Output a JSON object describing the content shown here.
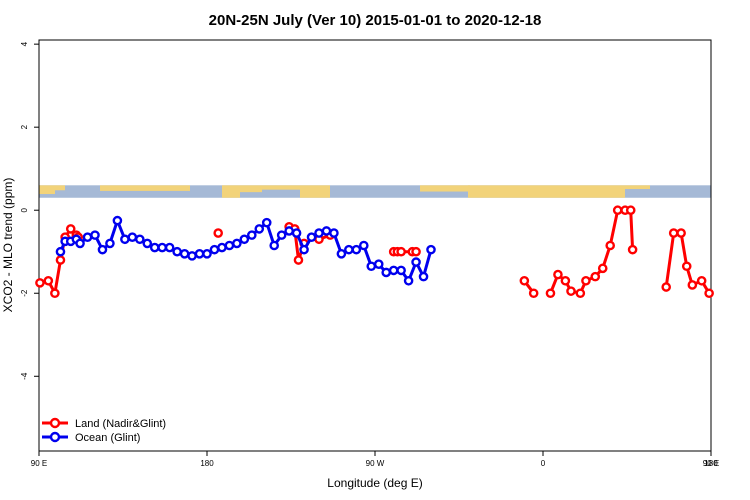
{
  "chart_data": {
    "type": "line",
    "title": "20N-25N July (Ver 10)   2015-01-01 to 2020-12-18",
    "xlabel": "Longitude (deg E)",
    "ylabel": "XCO2 - MLO trend (ppm)",
    "xlim": [
      90,
      450
    ],
    "ylim": [
      -5.8,
      4.1
    ],
    "x_ticks": [
      {
        "value": 90,
        "label": "90 E"
      },
      {
        "value": 180,
        "label": "180"
      },
      {
        "value": 270,
        "label": "90 W"
      },
      {
        "value": 360,
        "label": "0"
      },
      {
        "value": 450,
        "label": "90 E"
      },
      {
        "value": 540,
        "label": "180"
      }
    ],
    "y_ticks": [
      {
        "value": 4,
        "label": "4"
      },
      {
        "value": 2,
        "label": "2"
      },
      {
        "value": 0,
        "label": "0"
      },
      {
        "value": -2,
        "label": "-2"
      },
      {
        "value": -4,
        "label": "-4"
      }
    ],
    "map_strip": {
      "y_top": 0.6,
      "y_bottom": 0.3,
      "ocean_color": "#a5b9d6",
      "land_color": "#f2d37a"
    },
    "legend": {
      "position": "bottom-left"
    },
    "grid": false,
    "series": [
      {
        "name": "Land (Nadir&Glint)",
        "color": "#ff0000",
        "points": [
          [
            90.5,
            -1.75
          ],
          [
            95,
            -1.7
          ],
          [
            98.5,
            -2.0
          ],
          [
            101.5,
            -1.2
          ],
          [
            104,
            -0.65
          ],
          [
            107,
            -0.45
          ],
          [
            110,
            -0.6
          ],
          [
            111,
            -0.65
          ],
          [
            186,
            -0.55
          ],
          [
            224,
            -0.4
          ],
          [
            227,
            -0.45
          ],
          [
            229,
            -1.2
          ],
          [
            232,
            -0.8
          ],
          [
            240,
            -0.7
          ],
          [
            246,
            -0.6
          ],
          [
            280,
            -1.0
          ],
          [
            282,
            -1.0
          ],
          [
            284,
            -1.0
          ],
          [
            290,
            -1.0
          ],
          [
            292,
            -1.0
          ],
          [
            350,
            -1.7
          ],
          [
            355,
            -2.0
          ],
          [
            364,
            -2.0
          ],
          [
            368,
            -1.55
          ],
          [
            372,
            -1.7
          ],
          [
            375,
            -1.95
          ],
          [
            380,
            -2.0
          ],
          [
            383,
            -1.7
          ],
          [
            388,
            -1.6
          ],
          [
            392,
            -1.4
          ],
          [
            396,
            -0.85
          ],
          [
            400,
            -0.0
          ],
          [
            404,
            -0.0
          ],
          [
            407,
            -0.0
          ],
          [
            408,
            -0.95
          ],
          [
            426,
            -1.85
          ],
          [
            430,
            -0.55
          ],
          [
            434,
            -0.55
          ],
          [
            437,
            -1.35
          ],
          [
            440,
            -1.8
          ],
          [
            445,
            -1.7
          ],
          [
            449,
            -2.0
          ]
        ]
      },
      {
        "name": "Ocean (Glint)",
        "color": "#0000ee",
        "points": [
          [
            101.5,
            -1.0
          ],
          [
            104,
            -0.75
          ],
          [
            107,
            -0.75
          ],
          [
            110,
            -0.7
          ],
          [
            112,
            -0.8
          ],
          [
            116,
            -0.65
          ],
          [
            120,
            -0.6
          ],
          [
            124,
            -0.95
          ],
          [
            128,
            -0.8
          ],
          [
            132,
            -0.25
          ],
          [
            136,
            -0.7
          ],
          [
            140,
            -0.65
          ],
          [
            144,
            -0.7
          ],
          [
            148,
            -0.8
          ],
          [
            152,
            -0.9
          ],
          [
            156,
            -0.9
          ],
          [
            160,
            -0.9
          ],
          [
            164,
            -1.0
          ],
          [
            168,
            -1.05
          ],
          [
            172,
            -1.1
          ],
          [
            176,
            -1.05
          ],
          [
            180,
            -1.05
          ],
          [
            184,
            -0.95
          ],
          [
            188,
            -0.9
          ],
          [
            192,
            -0.85
          ],
          [
            196,
            -0.8
          ],
          [
            200,
            -0.7
          ],
          [
            204,
            -0.6
          ],
          [
            208,
            -0.45
          ],
          [
            212,
            -0.3
          ],
          [
            216,
            -0.85
          ],
          [
            220,
            -0.6
          ],
          [
            224,
            -0.5
          ],
          [
            228,
            -0.55
          ],
          [
            232,
            -0.95
          ],
          [
            236,
            -0.65
          ],
          [
            240,
            -0.55
          ],
          [
            244,
            -0.5
          ],
          [
            248,
            -0.55
          ],
          [
            252,
            -1.05
          ],
          [
            256,
            -0.95
          ],
          [
            260,
            -0.95
          ],
          [
            264,
            -0.85
          ],
          [
            268,
            -1.35
          ],
          [
            272,
            -1.3
          ],
          [
            276,
            -1.5
          ],
          [
            280,
            -1.45
          ],
          [
            284,
            -1.45
          ],
          [
            288,
            -1.7
          ],
          [
            292,
            -1.25
          ],
          [
            296,
            -1.6
          ],
          [
            300,
            -0.95
          ]
        ]
      }
    ]
  }
}
